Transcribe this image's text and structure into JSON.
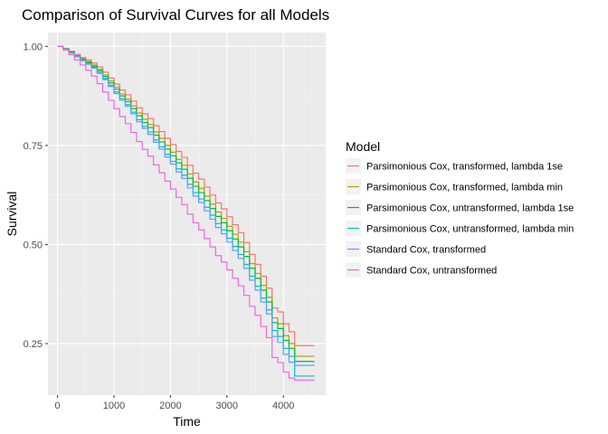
{
  "chart_data": {
    "type": "line",
    "step": true,
    "title": "Comparison of Survival Curves for all Models",
    "xlabel": "Time",
    "ylabel": "Survival",
    "xlim": [
      -170,
      4750
    ],
    "ylim": [
      0.12,
      1.035
    ],
    "x_ticks": [
      0,
      1000,
      2000,
      3000,
      4000
    ],
    "y_ticks": [
      0.25,
      0.5,
      0.75,
      1.0
    ],
    "y_tick_labels": [
      "0.25",
      "0.50",
      "0.75",
      "1.00"
    ],
    "grid": true,
    "panel_background": "#ebebeb",
    "legend": {
      "title": "Model",
      "placement": "right"
    },
    "x": [
      0,
      100,
      200,
      300,
      400,
      500,
      600,
      700,
      800,
      900,
      1000,
      1100,
      1200,
      1300,
      1400,
      1500,
      1600,
      1700,
      1800,
      1900,
      2000,
      2100,
      2200,
      2300,
      2400,
      2500,
      2600,
      2700,
      2800,
      2900,
      3000,
      3100,
      3200,
      3300,
      3400,
      3500,
      3600,
      3700,
      3800,
      3900,
      4000,
      4100,
      4200,
      4300,
      4400,
      4550
    ],
    "series": [
      {
        "name": "Parsimonious Cox, transformed, lambda 1se",
        "color": "#F8766D",
        "values": [
          1.0,
          0.995,
          0.988,
          0.98,
          0.972,
          0.966,
          0.958,
          0.948,
          0.935,
          0.92,
          0.905,
          0.89,
          0.878,
          0.862,
          0.845,
          0.83,
          0.818,
          0.8,
          0.785,
          0.768,
          0.752,
          0.735,
          0.72,
          0.7,
          0.68,
          0.665,
          0.645,
          0.625,
          0.605,
          0.59,
          0.57,
          0.55,
          0.53,
          0.505,
          0.475,
          0.45,
          0.42,
          0.39,
          0.34,
          0.33,
          0.3,
          0.28,
          0.245,
          0.245,
          0.245,
          0.245
        ]
      },
      {
        "name": "Parsimonious Cox, transformed, lambda min",
        "color": "#B79F00",
        "values": [
          1.0,
          0.994,
          0.986,
          0.977,
          0.969,
          0.962,
          0.953,
          0.942,
          0.928,
          0.913,
          0.897,
          0.88,
          0.867,
          0.85,
          0.832,
          0.816,
          0.803,
          0.784,
          0.768,
          0.75,
          0.733,
          0.715,
          0.7,
          0.678,
          0.658,
          0.642,
          0.622,
          0.602,
          0.582,
          0.566,
          0.546,
          0.526,
          0.506,
          0.482,
          0.452,
          0.427,
          0.397,
          0.367,
          0.315,
          0.3,
          0.27,
          0.25,
          0.218,
          0.218,
          0.218,
          0.218
        ]
      },
      {
        "name": "Parsimonious Cox, untransformed, lambda 1se",
        "color": "#00BA38",
        "values": [
          1.0,
          0.994,
          0.985,
          0.976,
          0.967,
          0.96,
          0.95,
          0.939,
          0.924,
          0.908,
          0.892,
          0.875,
          0.861,
          0.843,
          0.825,
          0.808,
          0.795,
          0.776,
          0.759,
          0.741,
          0.724,
          0.706,
          0.69,
          0.667,
          0.647,
          0.631,
          0.611,
          0.591,
          0.571,
          0.555,
          0.535,
          0.514,
          0.494,
          0.47,
          0.44,
          0.415,
          0.385,
          0.355,
          0.303,
          0.288,
          0.258,
          0.238,
          0.205,
          0.205,
          0.205,
          0.205
        ]
      },
      {
        "name": "Parsimonious Cox, untransformed, lambda min",
        "color": "#00BFC4",
        "values": [
          1.0,
          0.993,
          0.984,
          0.975,
          0.965,
          0.957,
          0.947,
          0.935,
          0.919,
          0.902,
          0.885,
          0.868,
          0.853,
          0.834,
          0.815,
          0.798,
          0.784,
          0.764,
          0.747,
          0.728,
          0.71,
          0.691,
          0.675,
          0.652,
          0.631,
          0.615,
          0.594,
          0.574,
          0.553,
          0.537,
          0.516,
          0.495,
          0.475,
          0.45,
          0.42,
          0.395,
          0.365,
          0.335,
          0.283,
          0.268,
          0.238,
          0.218,
          0.168,
          0.168,
          0.168,
          0.168
        ]
      },
      {
        "name": "Standard Cox, transformed",
        "color": "#619CFF",
        "values": [
          1.0,
          0.993,
          0.983,
          0.974,
          0.964,
          0.955,
          0.945,
          0.932,
          0.916,
          0.899,
          0.881,
          0.864,
          0.849,
          0.83,
          0.81,
          0.793,
          0.778,
          0.758,
          0.741,
          0.721,
          0.703,
          0.683,
          0.667,
          0.643,
          0.622,
          0.606,
          0.585,
          0.564,
          0.543,
          0.527,
          0.506,
          0.485,
          0.465,
          0.44,
          0.41,
          0.385,
          0.355,
          0.325,
          0.268,
          0.253,
          0.223,
          0.203,
          0.195,
          0.195,
          0.195,
          0.195
        ]
      },
      {
        "name": "Standard Cox, untransformed",
        "color": "#F564E3",
        "values": [
          1.0,
          0.991,
          0.979,
          0.966,
          0.953,
          0.94,
          0.925,
          0.906,
          0.885,
          0.864,
          0.843,
          0.823,
          0.805,
          0.783,
          0.76,
          0.74,
          0.723,
          0.701,
          0.681,
          0.66,
          0.64,
          0.619,
          0.601,
          0.577,
          0.555,
          0.537,
          0.515,
          0.494,
          0.472,
          0.456,
          0.436,
          0.415,
          0.396,
          0.372,
          0.344,
          0.321,
          0.293,
          0.265,
          0.215,
          0.202,
          0.178,
          0.163,
          0.158,
          0.158,
          0.158,
          0.158
        ]
      }
    ]
  }
}
